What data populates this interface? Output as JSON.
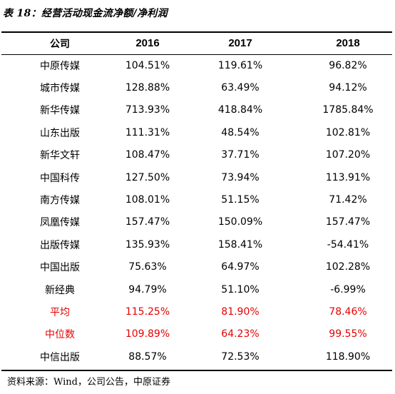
{
  "title": "表 18：经营活动现金流净额/净利润",
  "header": [
    "公司",
    "2016",
    "2017",
    "2018"
  ],
  "rows": [
    {
      "company": "中原传媒",
      "v2016": "104.51%",
      "v2017": "119.61%",
      "v2018": "96.82%",
      "highlight": false
    },
    {
      "company": "城市传媒",
      "v2016": "128.88%",
      "v2017": "63.49%",
      "v2018": "94.12%",
      "highlight": false
    },
    {
      "company": "新华传媒",
      "v2016": "713.93%",
      "v2017": "418.84%",
      "v2018": "1785.84%",
      "highlight": false
    },
    {
      "company": "山东出版",
      "v2016": "111.31%",
      "v2017": "48.54%",
      "v2018": "102.81%",
      "highlight": false
    },
    {
      "company": "新华文轩",
      "v2016": "108.47%",
      "v2017": "37.71%",
      "v2018": "107.20%",
      "highlight": false
    },
    {
      "company": "中国科传",
      "v2016": "127.50%",
      "v2017": "73.94%",
      "v2018": "113.91%",
      "highlight": false
    },
    {
      "company": "南方传媒",
      "v2016": "108.01%",
      "v2017": "51.15%",
      "v2018": "71.42%",
      "highlight": false
    },
    {
      "company": "凤凰传媒",
      "v2016": "157.47%",
      "v2017": "150.09%",
      "v2018": "157.47%",
      "highlight": false
    },
    {
      "company": "出版传媒",
      "v2016": "135.93%",
      "v2017": "158.41%",
      "v2018": "-54.41%",
      "highlight": false
    },
    {
      "company": "中国出版",
      "v2016": "75.63%",
      "v2017": "64.97%",
      "v2018": "102.28%",
      "highlight": false
    },
    {
      "company": "新经典",
      "v2016": "94.79%",
      "v2017": "51.10%",
      "v2018": "-6.99%",
      "highlight": false
    },
    {
      "company": "平均",
      "v2016": "115.25%",
      "v2017": "81.90%",
      "v2018": "78.46%",
      "highlight": true
    },
    {
      "company": "中位数",
      "v2016": "109.89%",
      "v2017": "64.23%",
      "v2018": "99.55%",
      "highlight": true
    },
    {
      "company": "中信出版",
      "v2016": "88.57%",
      "v2017": "72.53%",
      "v2018": "118.90%",
      "highlight": false
    }
  ],
  "source": "资料来源：Wind，公司公告，中原证券",
  "colors": {
    "highlight": "#e60000",
    "rule": "#000000"
  }
}
